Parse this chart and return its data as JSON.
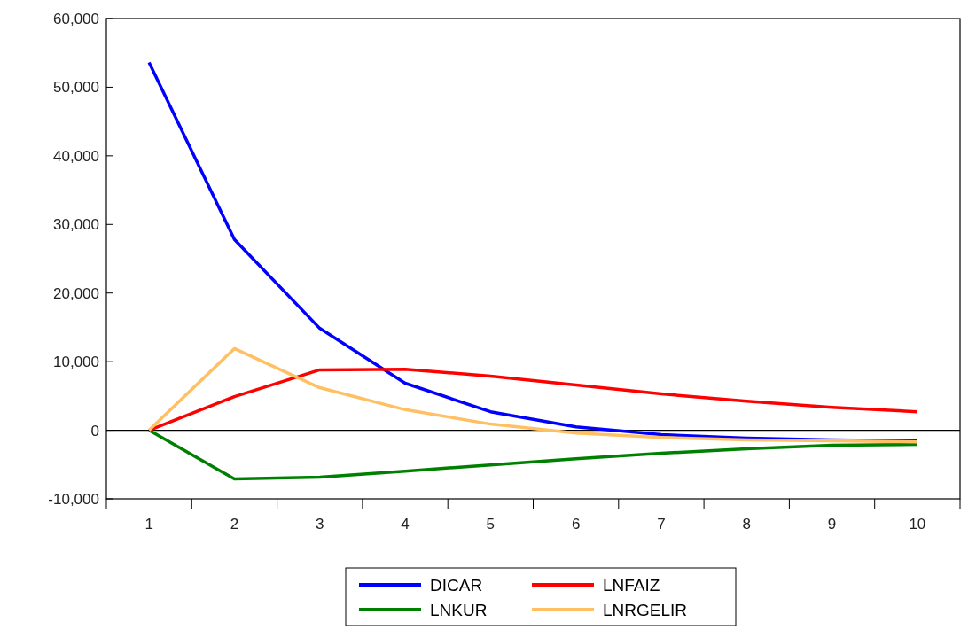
{
  "chart_data": {
    "type": "line",
    "categories": [
      "1",
      "2",
      "3",
      "4",
      "5",
      "6",
      "7",
      "8",
      "9",
      "10"
    ],
    "series": [
      {
        "name": "DICAR",
        "color": "#0000ff",
        "values": [
          53600,
          27800,
          14850,
          6850,
          2700,
          500,
          -650,
          -1150,
          -1400,
          -1550
        ]
      },
      {
        "name": "LNFAIZ",
        "color": "#ff0000",
        "values": [
          0,
          4900,
          8800,
          8900,
          7900,
          6600,
          5300,
          4250,
          3350,
          2700
        ]
      },
      {
        "name": "LNKUR",
        "color": "#008000",
        "values": [
          0,
          -7100,
          -6850,
          -5950,
          -5050,
          -4150,
          -3350,
          -2700,
          -2200,
          -2050
        ]
      },
      {
        "name": "LNRGELIR",
        "color": "#ffc064",
        "values": [
          0,
          11900,
          6200,
          3000,
          900,
          -400,
          -1050,
          -1400,
          -1550,
          -1700
        ]
      }
    ],
    "ylim": [
      -10000,
      60000
    ],
    "yticks": [
      {
        "value": -10000,
        "label": "-10,000"
      },
      0,
      {
        "value": 10000,
        "label": "10,000"
      },
      {
        "value": 20000,
        "label": "20,000"
      },
      {
        "value": 30000,
        "label": "30,000"
      },
      {
        "value": 40000,
        "label": "40,000"
      },
      {
        "value": 50000,
        "label": "50,000"
      },
      {
        "value": 60000,
        "label": "60,000"
      }
    ],
    "ref_lines": [
      {
        "axis": "y",
        "value": 0,
        "color": "#000000"
      }
    ],
    "grid": false,
    "legend": "bottom",
    "marker": "none",
    "line_style": "solid"
  }
}
